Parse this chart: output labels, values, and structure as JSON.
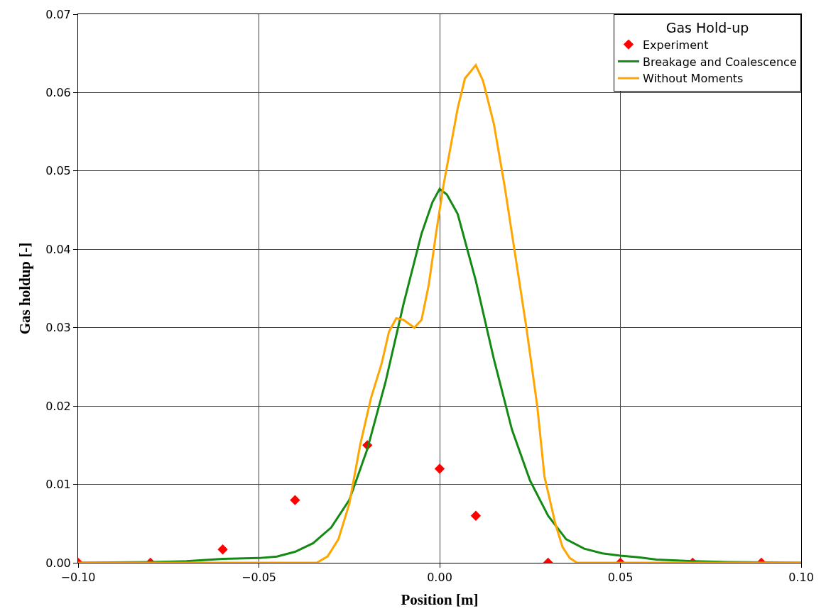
{
  "chart_data": {
    "type": "line",
    "legend_title": "Gas Hold-up",
    "xlabel": "Position [m]",
    "ylabel": "Gas holdup [-]",
    "xlim": [
      -0.1,
      0.1
    ],
    "ylim": [
      0,
      0.07
    ],
    "xticks": [
      {
        "value": -0.1,
        "label": "−0.10"
      },
      {
        "value": -0.05,
        "label": "−0.05"
      },
      {
        "value": 0,
        "label": "0.00"
      },
      {
        "value": 0.05,
        "label": "0.05"
      },
      {
        "value": 0.1,
        "label": "0.10"
      }
    ],
    "yticks": [
      {
        "value": 0,
        "label": "0.00"
      },
      0.01,
      0.02,
      0.03,
      0.04,
      0.05,
      0.06,
      0.07
    ],
    "grid": true,
    "legend": "top right",
    "series": [
      {
        "name": "Experiment",
        "type": "scatter",
        "marker": "diamond",
        "color": "#ff0000",
        "x": [
          -0.1,
          -0.08,
          -0.06,
          -0.04,
          -0.02,
          0.0,
          0.01,
          0.03,
          0.05,
          0.07,
          0.089
        ],
        "values": [
          0,
          0,
          0.0017,
          0.008,
          0.015,
          0.012,
          0.006,
          0,
          0,
          0,
          0
        ]
      },
      {
        "name": "Breakage and Coalescence",
        "marker": "none",
        "color": "#138a13",
        "x": [
          -0.1,
          -0.08,
          -0.07,
          -0.06,
          -0.05,
          -0.045,
          -0.04,
          -0.035,
          -0.03,
          -0.025,
          -0.02,
          -0.015,
          -0.01,
          -0.005,
          -0.002,
          0.0,
          0.002,
          0.005,
          0.01,
          0.015,
          0.02,
          0.025,
          0.03,
          0.035,
          0.04,
          0.045,
          0.05,
          0.055,
          0.06,
          0.07,
          0.08,
          0.1
        ],
        "values": [
          0,
          0.0001,
          0.0002,
          0.0005,
          0.0006,
          0.0008,
          0.0014,
          0.0025,
          0.0045,
          0.008,
          0.0145,
          0.023,
          0.033,
          0.042,
          0.046,
          0.0477,
          0.047,
          0.0445,
          0.036,
          0.026,
          0.017,
          0.0105,
          0.006,
          0.003,
          0.0018,
          0.0012,
          0.0009,
          0.0007,
          0.0004,
          0.0002,
          0.0001,
          0
        ]
      },
      {
        "name": "Without Moments",
        "marker": "none",
        "color": "#ffa500",
        "x": [
          -0.1,
          -0.034,
          -0.031,
          -0.028,
          -0.025,
          -0.022,
          -0.019,
          -0.016,
          -0.014,
          -0.012,
          -0.01,
          -0.007,
          -0.005,
          -0.003,
          -0.001,
          0.001,
          0.003,
          0.005,
          0.007,
          0.01,
          0.012,
          0.015,
          0.018,
          0.021,
          0.024,
          0.027,
          0.029,
          0.032,
          0.034,
          0.036,
          0.038,
          0.1
        ],
        "values": [
          0,
          0,
          0.0008,
          0.003,
          0.0075,
          0.015,
          0.021,
          0.0255,
          0.0295,
          0.0312,
          0.031,
          0.03,
          0.031,
          0.0355,
          0.042,
          0.048,
          0.053,
          0.058,
          0.0618,
          0.0635,
          0.0615,
          0.056,
          0.048,
          0.039,
          0.03,
          0.02,
          0.011,
          0.005,
          0.002,
          0.0006,
          0,
          0
        ]
      }
    ]
  }
}
